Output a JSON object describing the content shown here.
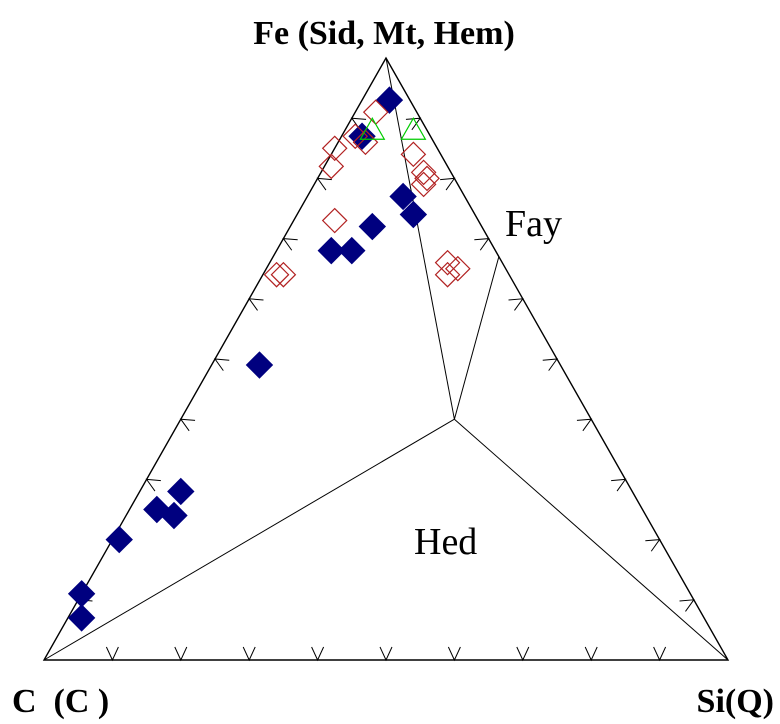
{
  "chart_data": {
    "type": "scatter",
    "subtype": "ternary",
    "vertices": {
      "top": "Fe (Sid, Mt, Hem)",
      "left": "C  (C )",
      "right": "Si(Q)"
    },
    "reference_points": [
      {
        "label": "Fay",
        "C": 0.0,
        "Si": 0.33,
        "Fe": 0.67
      },
      {
        "label": "Hed",
        "C": 0.2,
        "Si": 0.4,
        "Fe": 0.4
      }
    ],
    "tie_lines": [
      [
        "Fe",
        "Hed"
      ],
      [
        "Fe",
        "Fay"
      ],
      [
        "Fay",
        "Hed"
      ],
      [
        "C",
        "Hed"
      ],
      [
        "Si",
        "Hed"
      ]
    ],
    "tick_step": 0.1,
    "series": [
      {
        "marker": "filled-diamond",
        "color": "#00007f",
        "points": [
          {
            "C": 0.1,
            "Si": 0.03,
            "Fe": 0.87
          },
          {
            "C": 0.09,
            "Si": 0.17,
            "Fe": 0.74
          },
          {
            "C": 0.24,
            "Si": 0.08,
            "Fe": 0.68
          },
          {
            "C": 0.21,
            "Si": 0.11,
            "Fe": 0.68
          },
          {
            "C": 0.16,
            "Si": 0.12,
            "Fe": 0.72
          },
          {
            "C": 0.09,
            "Si": 0.14,
            "Fe": 0.77
          },
          {
            "C": 0.03,
            "Si": 0.04,
            "Fe": 0.93
          },
          {
            "C": 0.44,
            "Si": 0.07,
            "Fe": 0.49
          },
          {
            "C": 0.79,
            "Si": 0.01,
            "Fe": 0.2
          },
          {
            "C": 0.69,
            "Si": 0.07,
            "Fe": 0.24
          },
          {
            "C": 0.66,
            "Si": 0.06,
            "Fe": 0.28
          },
          {
            "C": 0.71,
            "Si": 0.04,
            "Fe": 0.25
          },
          {
            "C": 0.89,
            "Si": 0.0,
            "Fe": 0.11
          },
          {
            "C": 0.91,
            "Si": 0.02,
            "Fe": 0.07
          }
        ]
      },
      {
        "marker": "open-diamond",
        "color": "#b22222",
        "points": [
          {
            "C": 0.06,
            "Si": 0.03,
            "Fe": 0.91
          },
          {
            "C": 0.11,
            "Si": 0.02,
            "Fe": 0.87
          },
          {
            "C": 0.1,
            "Si": 0.04,
            "Fe": 0.86
          },
          {
            "C": 0.15,
            "Si": 0.0,
            "Fe": 0.85
          },
          {
            "C": 0.17,
            "Si": 0.01,
            "Fe": 0.82
          },
          {
            "C": 0.04,
            "Si": 0.12,
            "Fe": 0.84
          },
          {
            "C": 0.04,
            "Si": 0.15,
            "Fe": 0.81
          },
          {
            "C": 0.04,
            "Si": 0.16,
            "Fe": 0.8
          },
          {
            "C": 0.05,
            "Si": 0.16,
            "Fe": 0.79
          },
          {
            "C": 0.21,
            "Si": 0.06,
            "Fe": 0.73
          },
          {
            "C": 0.34,
            "Si": 0.02,
            "Fe": 0.64
          },
          {
            "C": 0.33,
            "Si": 0.03,
            "Fe": 0.64
          },
          {
            "C": 0.08,
            "Si": 0.26,
            "Fe": 0.66
          },
          {
            "C": 0.07,
            "Si": 0.28,
            "Fe": 0.65
          },
          {
            "C": 0.09,
            "Si": 0.27,
            "Fe": 0.64
          }
        ]
      },
      {
        "marker": "open-triangle",
        "color": "#00cc00",
        "points": [
          {
            "C": 0.08,
            "Si": 0.04,
            "Fe": 0.88
          },
          {
            "C": 0.02,
            "Si": 0.1,
            "Fe": 0.88
          }
        ]
      }
    ]
  }
}
